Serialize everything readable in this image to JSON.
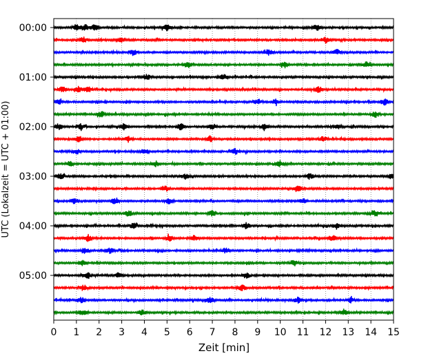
{
  "chart_data": {
    "type": "line",
    "chart_kind": "helicorder",
    "xlabel": "Zeit  [min]",
    "ylabel": "UTC (Lokalzeit = UTC + 01:00)",
    "xlim": [
      0,
      15
    ],
    "x_ticks": [
      "0",
      "1",
      "2",
      "3",
      "4",
      "5",
      "6",
      "7",
      "8",
      "9",
      "10",
      "11",
      "12",
      "13",
      "14",
      "15"
    ],
    "hour_labels": [
      "00:00",
      "01:00",
      "02:00",
      "03:00",
      "04:00",
      "05:00"
    ],
    "trace_interval_min": 15,
    "grid": "vertical dotted at every minute",
    "trace_colors": [
      "#000000",
      "#ff0000",
      "#0000ff",
      "#008000"
    ],
    "traces": [
      {
        "start": "00:00",
        "color": "#000000",
        "events_min": [
          1.0,
          1.4,
          1.8,
          5.0,
          11.6
        ]
      },
      {
        "start": "00:15",
        "color": "#ff0000",
        "events_min": [
          1.3,
          3.0,
          12.0
        ]
      },
      {
        "start": "00:30",
        "color": "#0000ff",
        "events_min": [
          3.5,
          9.5,
          12.5
        ]
      },
      {
        "start": "00:45",
        "color": "#008000",
        "events_min": [
          5.9,
          10.2,
          13.8
        ]
      },
      {
        "start": "01:00",
        "color": "#000000",
        "events_min": [
          4.1,
          7.5
        ]
      },
      {
        "start": "01:15",
        "color": "#ff0000",
        "events_min": [
          0.4,
          1.1,
          1.5,
          11.7
        ]
      },
      {
        "start": "01:30",
        "color": "#0000ff",
        "events_min": [
          0.2,
          9.0,
          9.8,
          14.6
        ]
      },
      {
        "start": "01:45",
        "color": "#008000",
        "events_min": [
          2.1,
          14.2
        ]
      },
      {
        "start": "02:00",
        "color": "#000000",
        "events_min": [
          0.2,
          1.2,
          3.1,
          5.6,
          7.0,
          9.3,
          12.5
        ]
      },
      {
        "start": "02:15",
        "color": "#ff0000",
        "events_min": [
          1.1,
          3.3,
          6.9,
          11.9
        ]
      },
      {
        "start": "02:30",
        "color": "#0000ff",
        "events_min": [
          1.0,
          4.0,
          8.0
        ]
      },
      {
        "start": "02:45",
        "color": "#008000",
        "events_min": [
          0.7,
          4.5,
          10.0
        ]
      },
      {
        "start": "03:00",
        "color": "#000000",
        "events_min": [
          0.3,
          5.8,
          11.3,
          14.9
        ]
      },
      {
        "start": "03:15",
        "color": "#ff0000",
        "events_min": [
          4.9,
          10.8
        ]
      },
      {
        "start": "03:30",
        "color": "#0000ff",
        "events_min": [
          0.9,
          2.7,
          5.1,
          11.0
        ]
      },
      {
        "start": "03:45",
        "color": "#008000",
        "events_min": [
          3.3,
          7.0,
          14.2
        ]
      },
      {
        "start": "04:00",
        "color": "#000000",
        "events_min": [
          3.5,
          8.5,
          12.5
        ]
      },
      {
        "start": "04:15",
        "color": "#ff0000",
        "events_min": [
          1.5,
          5.1,
          6.2,
          12.3
        ]
      },
      {
        "start": "04:30",
        "color": "#0000ff",
        "events_min": [
          1.4,
          2.5,
          7.6
        ]
      },
      {
        "start": "04:45",
        "color": "#008000",
        "events_min": [
          1.3,
          10.6
        ]
      },
      {
        "start": "05:00",
        "color": "#000000",
        "events_min": [
          1.5,
          2.9,
          8.5
        ]
      },
      {
        "start": "05:15",
        "color": "#ff0000",
        "events_min": [
          1.3,
          8.3
        ]
      },
      {
        "start": "05:30",
        "color": "#0000ff",
        "events_min": [
          1.2,
          6.9,
          10.8,
          13.1
        ]
      },
      {
        "start": "05:45",
        "color": "#008000",
        "events_min": [
          1.3,
          3.9,
          12.8
        ]
      }
    ]
  }
}
